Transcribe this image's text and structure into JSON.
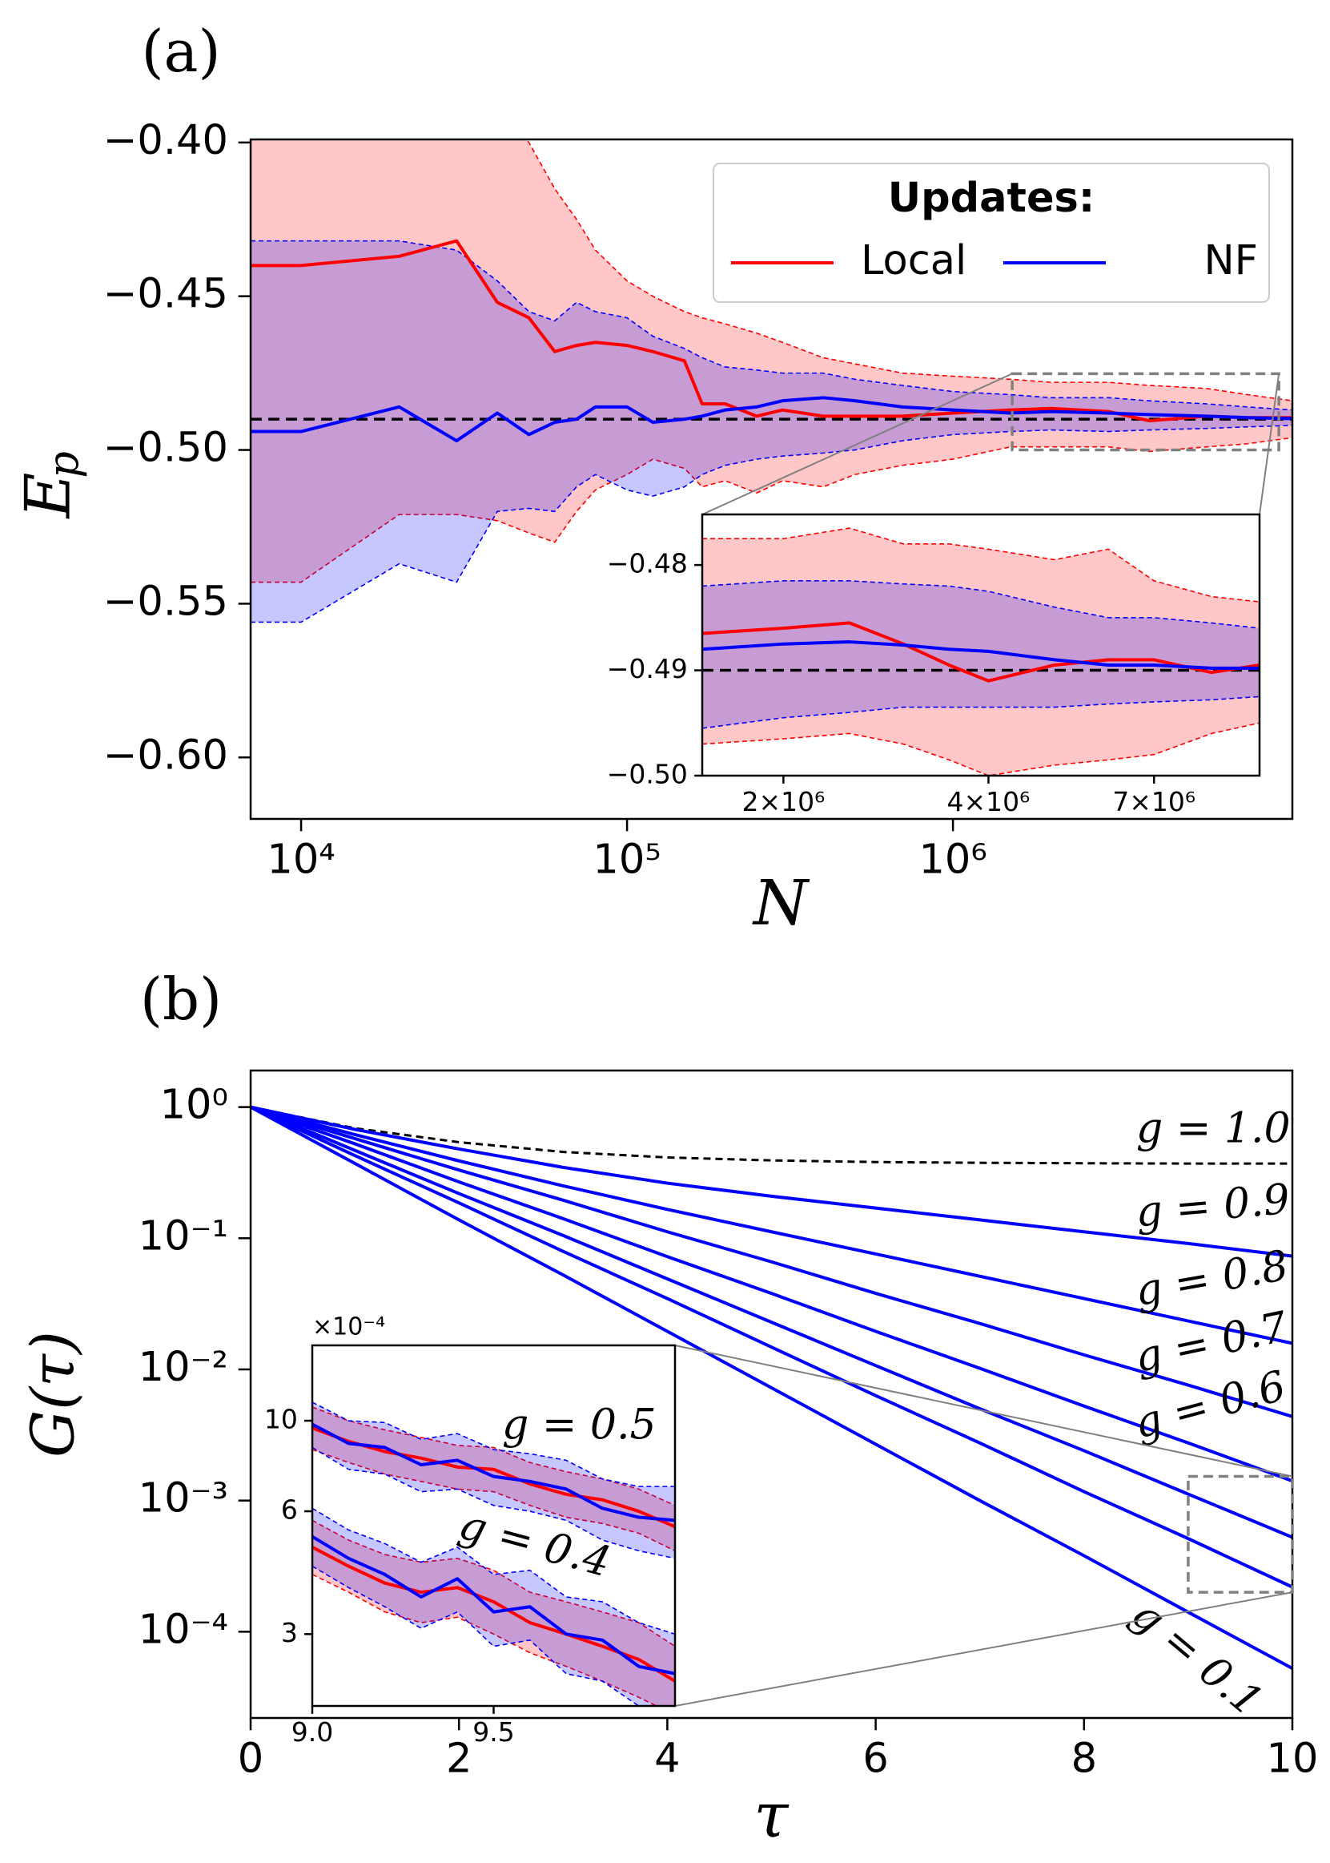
{
  "chart_data": [
    {
      "type": "line",
      "panel_label": "(a)",
      "x_label": "N",
      "y_label": "E",
      "y_label_sub": "p",
      "xscale": "log",
      "xlim": [
        7000,
        11000000
      ],
      "xticks": [
        {
          "value": 10000,
          "label": "10⁴"
        },
        {
          "value": 100000,
          "label": "10⁵"
        },
        {
          "value": 1000000,
          "label": "10⁶"
        }
      ],
      "ylim": [
        -0.62,
        -0.399
      ],
      "yticks": [
        {
          "value": -0.6,
          "label": "−0.60"
        },
        {
          "value": -0.55,
          "label": "−0.55"
        },
        {
          "value": -0.5,
          "label": "−0.50"
        },
        {
          "value": -0.45,
          "label": "−0.45"
        },
        {
          "value": -0.4,
          "label": "−0.40"
        }
      ],
      "hline": -0.49,
      "legend": {
        "title": "Updates:",
        "loc": "upper right"
      },
      "x": [
        7000,
        10000,
        20000,
        30000,
        40000,
        50000,
        60000,
        70000,
        80000,
        100000,
        120000,
        150000,
        170000,
        200000,
        250000,
        300000,
        400000,
        500000,
        700000,
        1000000,
        1500000,
        2000000,
        3000000,
        4000000,
        6000000,
        8000000,
        11000000
      ],
      "series": [
        {
          "name": "Local",
          "color": "#ff0000",
          "values": [
            -0.44,
            -0.44,
            -0.437,
            -0.432,
            -0.452,
            -0.457,
            -0.468,
            -0.466,
            -0.465,
            -0.466,
            -0.468,
            -0.471,
            -0.485,
            -0.485,
            -0.489,
            -0.487,
            -0.489,
            -0.489,
            -0.489,
            -0.488,
            -0.487,
            -0.4865,
            -0.4875,
            -0.4905,
            -0.489,
            -0.4895,
            -0.4895
          ],
          "upper": [
            -0.33,
            -0.34,
            -0.36,
            -0.375,
            -0.39,
            -0.4,
            -0.415,
            -0.425,
            -0.435,
            -0.445,
            -0.45,
            -0.455,
            -0.457,
            -0.459,
            -0.462,
            -0.465,
            -0.47,
            -0.472,
            -0.475,
            -0.476,
            -0.477,
            -0.478,
            -0.478,
            -0.479,
            -0.48,
            -0.482,
            -0.484
          ],
          "lower": [
            -0.543,
            -0.543,
            -0.521,
            -0.521,
            -0.523,
            -0.527,
            -0.53,
            -0.52,
            -0.513,
            -0.508,
            -0.503,
            -0.506,
            -0.512,
            -0.51,
            -0.514,
            -0.51,
            -0.512,
            -0.508,
            -0.505,
            -0.503,
            -0.499,
            -0.499,
            -0.499,
            -0.5005,
            -0.499,
            -0.498,
            -0.496
          ]
        },
        {
          "name": "NF",
          "color": "#0000ff",
          "values": [
            -0.494,
            -0.494,
            -0.486,
            -0.497,
            -0.488,
            -0.495,
            -0.491,
            -0.49,
            -0.486,
            -0.486,
            -0.491,
            -0.49,
            -0.489,
            -0.487,
            -0.486,
            -0.484,
            -0.483,
            -0.484,
            -0.486,
            -0.487,
            -0.488,
            -0.4875,
            -0.488,
            -0.4885,
            -0.489,
            -0.4895,
            -0.4898
          ],
          "upper": [
            -0.432,
            -0.432,
            -0.432,
            -0.435,
            -0.445,
            -0.455,
            -0.458,
            -0.452,
            -0.455,
            -0.457,
            -0.463,
            -0.467,
            -0.47,
            -0.473,
            -0.474,
            -0.475,
            -0.475,
            -0.477,
            -0.479,
            -0.481,
            -0.482,
            -0.483,
            -0.483,
            -0.484,
            -0.485,
            -0.486,
            -0.487
          ],
          "lower": [
            -0.556,
            -0.556,
            -0.537,
            -0.543,
            -0.52,
            -0.519,
            -0.52,
            -0.512,
            -0.508,
            -0.513,
            -0.515,
            -0.512,
            -0.508,
            -0.505,
            -0.503,
            -0.502,
            -0.501,
            -0.5,
            -0.497,
            -0.495,
            -0.494,
            -0.4935,
            -0.494,
            -0.4935,
            -0.493,
            -0.4925,
            -0.492
          ]
        }
      ],
      "inset": {
        "xscale": "log",
        "xlim": [
          1520000,
          10000000
        ],
        "xticks": [
          {
            "value": 2000000,
            "label": "2×10⁶"
          },
          {
            "value": 4000000,
            "label": "4×10⁶"
          },
          {
            "value": 7000000,
            "label": "7×10⁶"
          }
        ],
        "ylim": [
          -0.5,
          -0.4752
        ],
        "yticks": [
          {
            "value": -0.5,
            "label": "−0.50"
          },
          {
            "value": -0.49,
            "label": "−0.49"
          },
          {
            "value": -0.48,
            "label": "−0.48"
          }
        ],
        "x": [
          1520000,
          2000000,
          2500000,
          3000000,
          3500000,
          4000000,
          5000000,
          6000000,
          7000000,
          8500000,
          10000000
        ],
        "series": [
          {
            "values": [
              -0.4865,
              -0.486,
              -0.4855,
              -0.4875,
              -0.4895,
              -0.491,
              -0.4895,
              -0.489,
              -0.489,
              -0.4902,
              -0.4895
            ],
            "upper": [
              -0.4775,
              -0.4775,
              -0.4765,
              -0.478,
              -0.478,
              -0.4785,
              -0.4795,
              -0.4785,
              -0.4815,
              -0.483,
              -0.4835
            ],
            "lower": [
              -0.497,
              -0.4965,
              -0.496,
              -0.497,
              -0.4985,
              -0.5,
              -0.499,
              -0.4985,
              -0.498,
              -0.496,
              -0.495
            ]
          },
          {
            "values": [
              -0.488,
              -0.4875,
              -0.4873,
              -0.4876,
              -0.488,
              -0.4882,
              -0.489,
              -0.4895,
              -0.4895,
              -0.4898,
              -0.4898
            ],
            "upper": [
              -0.482,
              -0.4815,
              -0.4815,
              -0.4818,
              -0.482,
              -0.4825,
              -0.484,
              -0.485,
              -0.485,
              -0.4855,
              -0.486
            ],
            "lower": [
              -0.4955,
              -0.4945,
              -0.494,
              -0.4935,
              -0.4935,
              -0.4935,
              -0.4935,
              -0.4932,
              -0.493,
              -0.4928,
              -0.4925
            ]
          }
        ]
      }
    },
    {
      "type": "line",
      "panel_label": "(b)",
      "x_label": "τ",
      "y_label": "G(τ)",
      "xlim": [
        0,
        10
      ],
      "xticks": [
        0,
        2,
        4,
        6,
        8,
        10
      ],
      "yscale": "log",
      "ylim": [
        2.2e-05,
        1.9
      ],
      "yticks": [
        {
          "value": 0.0001,
          "label": "10⁻⁴"
        },
        {
          "value": 0.001,
          "label": "10⁻³"
        },
        {
          "value": 0.01,
          "label": "10⁻²"
        },
        {
          "value": 0.1,
          "label": "10⁻¹"
        },
        {
          "value": 1,
          "label": "10⁰"
        }
      ],
      "x": [
        0,
        1,
        2,
        3,
        4,
        5,
        6,
        7,
        8,
        9,
        10
      ],
      "series": [
        {
          "name": "g = 1.0",
          "color": "#000000",
          "dash": true,
          "values": [
            1,
            0.69,
            0.54,
            0.455,
            0.413,
            0.392,
            0.381,
            0.376,
            0.373,
            0.371,
            0.371
          ]
        },
        {
          "name": "g = 0.9",
          "color": "#0000ff",
          "values": [
            1,
            0.676,
            0.479,
            0.347,
            0.263,
            0.209,
            0.17,
            0.138,
            0.112,
            0.0912,
            0.0731
          ]
        },
        {
          "name": "g = 0.8",
          "color": "#0000ff",
          "values": [
            1,
            0.617,
            0.389,
            0.251,
            0.166,
            0.112,
            0.0759,
            0.0513,
            0.0347,
            0.0234,
            0.0158
          ]
        },
        {
          "name": "g = 0.7",
          "color": "#0000ff",
          "values": [
            1,
            0.575,
            0.331,
            0.195,
            0.112,
            0.0661,
            0.038,
            0.0224,
            0.0129,
            0.00759,
            0.00437
          ]
        },
        {
          "name": "g = 0.6",
          "color": "#0000ff",
          "values": [
            1,
            0.525,
            0.269,
            0.141,
            0.0724,
            0.038,
            0.0195,
            0.0102,
            0.00525,
            0.00275,
            0.00141
          ]
        },
        {
          "color": "#0000ff",
          "values": [
            1,
            0.468,
            0.219,
            0.105,
            0.049,
            0.0229,
            0.0107,
            0.00501,
            0.0024,
            0.00112,
            0.000525
          ]
        },
        {
          "color": "#0000ff",
          "values": [
            1,
            0.427,
            0.186,
            0.0794,
            0.0347,
            0.0148,
            0.00631,
            0.00275,
            0.00117,
            0.000513,
            0.000219
          ]
        },
        {
          "name": "g = 0.1",
          "color": "#0000ff",
          "values": [
            1,
            0.372,
            0.138,
            0.0525,
            0.0195,
            0.00724,
            0.00269,
            0.001,
            0.00038,
            0.000141,
            5.25e-05
          ]
        }
      ],
      "inset": {
        "xlim": [
          9,
          10
        ],
        "xticks": [
          {
            "value": 9,
            "label": "9.0"
          },
          {
            "value": 9.5,
            "label": "9.5"
          }
        ],
        "yscale": "log",
        "ylim": [
          2,
          15.3
        ],
        "yticks": [
          3,
          6,
          10
        ],
        "offset": {
          "value": 0.0001,
          "label": "×10⁻⁴"
        },
        "x": [
          9,
          9.1,
          9.2,
          9.3,
          9.4,
          9.5,
          9.6,
          9.7,
          9.8,
          9.9,
          10
        ],
        "series": [
          {
            "name": "g = 0.5",
            "color": "#ff0000",
            "values": [
              9.6,
              8.9,
              8.4,
              8.1,
              7.7,
              7.6,
              7.0,
              6.6,
              6.4,
              6.0,
              5.5
            ],
            "lower": [
              8.5,
              7.9,
              7.4,
              7.1,
              6.8,
              6.7,
              6.2,
              5.8,
              5.6,
              5.3,
              4.8
            ],
            "upper": [
              10.8,
              10.0,
              9.5,
              9.1,
              8.7,
              8.6,
              7.9,
              7.5,
              7.2,
              6.8,
              6.2
            ]
          },
          {
            "color": "#0000ff",
            "values": [
              9.8,
              8.8,
              8.6,
              7.8,
              8.0,
              7.3,
              7.1,
              6.8,
              6.1,
              5.8,
              5.7
            ],
            "lower": [
              8.6,
              7.6,
              7.4,
              6.7,
              6.8,
              6.2,
              6.0,
              5.7,
              5.1,
              4.8,
              4.6
            ],
            "upper": [
              11.1,
              10.0,
              9.9,
              9.0,
              9.3,
              8.5,
              8.3,
              8.0,
              7.2,
              6.9,
              6.9
            ]
          },
          {
            "name": "g = 0.4",
            "color": "#ff0000",
            "values": [
              4.9,
              4.4,
              4.0,
              3.8,
              3.9,
              3.6,
              3.2,
              3.0,
              2.8,
              2.6,
              2.3
            ],
            "lower": [
              4.2,
              3.8,
              3.4,
              3.2,
              3.3,
              3.0,
              2.7,
              2.5,
              2.3,
              2.1,
              1.9
            ],
            "upper": [
              5.7,
              5.1,
              4.7,
              4.5,
              4.6,
              4.3,
              3.8,
              3.6,
              3.4,
              3.2,
              2.8
            ]
          },
          {
            "color": "#0000ff",
            "values": [
              5.2,
              4.6,
              4.2,
              3.7,
              4.1,
              3.4,
              3.5,
              3.0,
              2.9,
              2.5,
              2.4
            ],
            "lower": [
              4.4,
              3.9,
              3.5,
              3.1,
              3.4,
              2.8,
              2.9,
              2.4,
              2.3,
              2.0,
              1.9
            ],
            "upper": [
              6.1,
              5.4,
              5.0,
              4.5,
              4.9,
              4.2,
              4.3,
              3.7,
              3.6,
              3.2,
              3.0
            ]
          }
        ]
      }
    }
  ]
}
